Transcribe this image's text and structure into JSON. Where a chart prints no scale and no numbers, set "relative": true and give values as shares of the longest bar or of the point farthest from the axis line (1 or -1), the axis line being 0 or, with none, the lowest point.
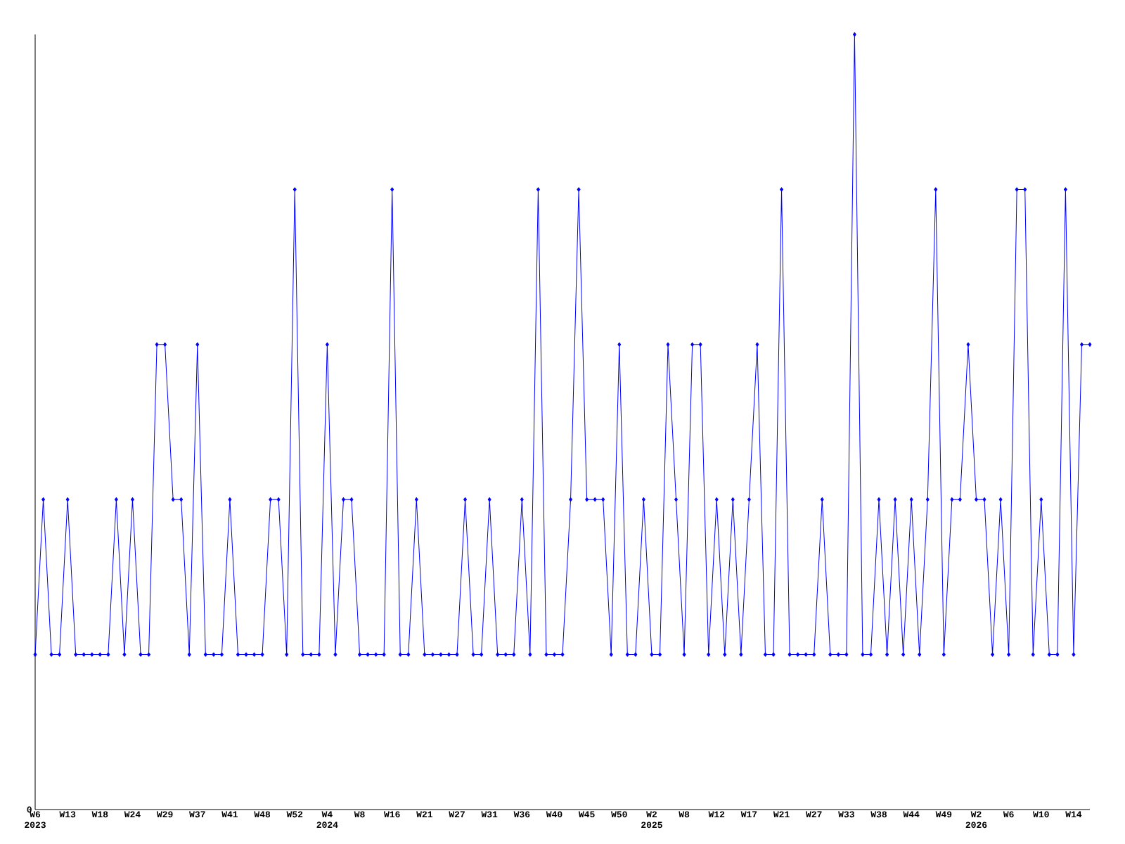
{
  "chart_data": {
    "type": "line",
    "relative": true,
    "marker": "diamond",
    "line_style": "solid",
    "color": "#0000ff",
    "annotations": [
      "0"
    ],
    "categories": [
      "W6 2023",
      null,
      null,
      null,
      "W13",
      null,
      null,
      null,
      "W18",
      null,
      null,
      null,
      "W24",
      null,
      null,
      null,
      "W29",
      null,
      null,
      null,
      "W37",
      null,
      null,
      null,
      "W41",
      null,
      null,
      null,
      "W48",
      null,
      null,
      null,
      "W52",
      null,
      null,
      null,
      "W4 2024",
      null,
      null,
      null,
      "W8",
      null,
      null,
      null,
      "W16",
      null,
      null,
      null,
      "W21",
      null,
      null,
      null,
      "W27",
      null,
      null,
      null,
      "W31",
      null,
      null,
      null,
      "W36",
      null,
      null,
      null,
      "W40",
      null,
      null,
      null,
      "W45",
      null,
      null,
      null,
      "W50",
      null,
      null,
      null,
      "W2 2025",
      null,
      null,
      null,
      "W8",
      null,
      null,
      null,
      "W12",
      null,
      null,
      null,
      "W17",
      null,
      null,
      null,
      "W21",
      null,
      null,
      null,
      "W27",
      null,
      null,
      null,
      "W33",
      null,
      null,
      null,
      "W38",
      null,
      null,
      null,
      "W44",
      null,
      null,
      null,
      "W49",
      null,
      null,
      null,
      "W2 2026",
      null,
      null,
      null,
      "W6",
      null,
      null,
      null,
      "W10",
      null,
      null,
      null,
      "W14",
      null,
      null
    ],
    "values": [
      0.2,
      0.4,
      0.2,
      0.2,
      0.4,
      0.2,
      0.2,
      0.2,
      0.2,
      0.2,
      0.4,
      0.2,
      0.4,
      0.2,
      0.2,
      0.6,
      0.6,
      0.4,
      0.4,
      0.2,
      0.6,
      0.2,
      0.2,
      0.2,
      0.4,
      0.2,
      0.2,
      0.2,
      0.2,
      0.4,
      0.4,
      0.2,
      0.8,
      0.2,
      0.2,
      0.2,
      0.6,
      0.2,
      0.4,
      0.4,
      0.2,
      0.2,
      0.2,
      0.2,
      0.8,
      0.2,
      0.2,
      0.4,
      0.2,
      0.2,
      0.2,
      0.2,
      0.2,
      0.4,
      0.2,
      0.2,
      0.4,
      0.2,
      0.2,
      0.2,
      0.4,
      0.2,
      0.8,
      0.2,
      0.2,
      0.2,
      0.4,
      0.8,
      0.4,
      0.4,
      0.4,
      0.2,
      0.6,
      0.2,
      0.2,
      0.4,
      0.2,
      0.2,
      0.6,
      0.4,
      0.2,
      0.6,
      0.6,
      0.2,
      0.4,
      0.2,
      0.4,
      0.2,
      0.4,
      0.6,
      0.2,
      0.2,
      0.8,
      0.2,
      0.2,
      0.2,
      0.2,
      0.4,
      0.2,
      0.2,
      0.2,
      1.0,
      0.2,
      0.2,
      0.4,
      0.2,
      0.4,
      0.2,
      0.4,
      0.2,
      0.4,
      0.8,
      0.2,
      0.4,
      0.4,
      0.6,
      0.4,
      0.4,
      0.2,
      0.4,
      0.2,
      0.8,
      0.8,
      0.2,
      0.4,
      0.2,
      0.2,
      0.8,
      0.2,
      0.6,
      0.6
    ]
  }
}
